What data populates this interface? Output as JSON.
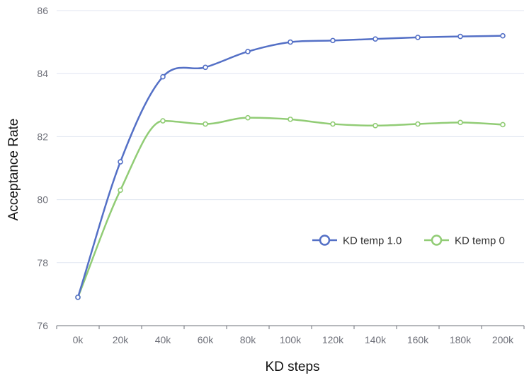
{
  "chart_data": {
    "type": "line",
    "title": "",
    "xlabel": "KD steps",
    "ylabel": "Acceptance Rate",
    "categories": [
      "0k",
      "20k",
      "40k",
      "60k",
      "80k",
      "100k",
      "120k",
      "140k",
      "160k",
      "180k",
      "200k"
    ],
    "ylim": [
      76,
      86
    ],
    "yticks": [
      76,
      78,
      80,
      82,
      84,
      86
    ],
    "grid": true,
    "legend_position": "right",
    "series": [
      {
        "name": "KD temp 1.0",
        "color": "#5470c6",
        "values": [
          76.9,
          81.2,
          83.9,
          84.2,
          84.7,
          85.0,
          85.05,
          85.1,
          85.15,
          85.18,
          85.2
        ]
      },
      {
        "name": "KD temp 0",
        "color": "#91cc75",
        "values": [
          76.9,
          80.3,
          82.5,
          82.4,
          82.6,
          82.55,
          82.4,
          82.35,
          82.4,
          82.45,
          82.38
        ]
      }
    ]
  }
}
